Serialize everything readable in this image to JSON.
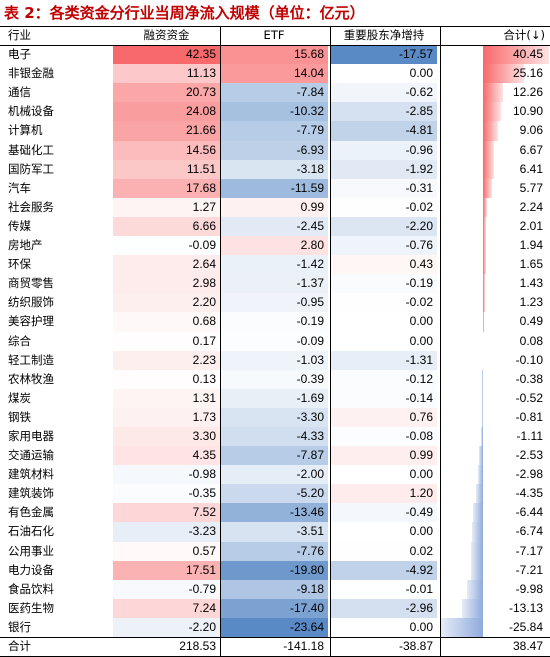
{
  "title": "表 2：各类资金分行业当周净流入规模（单位：亿元）",
  "columns": [
    "行业",
    "融资资金",
    "ETF",
    "重要股东净增持",
    "合计(↓)"
  ],
  "rows": [
    {
      "industry": "电子",
      "margin": "42.35",
      "etf": "15.68",
      "holder": "-17.57",
      "total": "40.45"
    },
    {
      "industry": "非银金融",
      "margin": "11.13",
      "etf": "14.04",
      "holder": "0.00",
      "total": "25.16"
    },
    {
      "industry": "通信",
      "margin": "20.73",
      "etf": "-7.84",
      "holder": "-0.62",
      "total": "12.26"
    },
    {
      "industry": "机械设备",
      "margin": "24.08",
      "etf": "-10.32",
      "holder": "-2.85",
      "total": "10.90"
    },
    {
      "industry": "计算机",
      "margin": "21.66",
      "etf": "-7.79",
      "holder": "-4.81",
      "total": "9.06"
    },
    {
      "industry": "基础化工",
      "margin": "14.56",
      "etf": "-6.93",
      "holder": "-0.96",
      "total": "6.67"
    },
    {
      "industry": "国防军工",
      "margin": "11.51",
      "etf": "-3.18",
      "holder": "-1.92",
      "total": "6.41"
    },
    {
      "industry": "汽车",
      "margin": "17.68",
      "etf": "-11.59",
      "holder": "-0.31",
      "total": "5.77"
    },
    {
      "industry": "社会服务",
      "margin": "1.27",
      "etf": "0.99",
      "holder": "-0.02",
      "total": "2.24"
    },
    {
      "industry": "传媒",
      "margin": "6.66",
      "etf": "-2.45",
      "holder": "-2.20",
      "total": "2.01"
    },
    {
      "industry": "房地产",
      "margin": "-0.09",
      "etf": "2.80",
      "holder": "-0.76",
      "total": "1.94"
    },
    {
      "industry": "环保",
      "margin": "2.64",
      "etf": "-1.42",
      "holder": "0.43",
      "total": "1.65"
    },
    {
      "industry": "商贸零售",
      "margin": "2.98",
      "etf": "-1.37",
      "holder": "-0.19",
      "total": "1.43"
    },
    {
      "industry": "纺织服饰",
      "margin": "2.20",
      "etf": "-0.95",
      "holder": "-0.02",
      "total": "1.23"
    },
    {
      "industry": "美容护理",
      "margin": "0.68",
      "etf": "-0.19",
      "holder": "0.00",
      "total": "0.49"
    },
    {
      "industry": "综合",
      "margin": "0.17",
      "etf": "-0.09",
      "holder": "0.00",
      "total": "0.08"
    },
    {
      "industry": "轻工制造",
      "margin": "2.23",
      "etf": "-1.03",
      "holder": "-1.31",
      "total": "-0.10"
    },
    {
      "industry": "农林牧渔",
      "margin": "0.13",
      "etf": "-0.39",
      "holder": "-0.12",
      "total": "-0.38"
    },
    {
      "industry": "煤炭",
      "margin": "1.31",
      "etf": "-1.69",
      "holder": "-0.14",
      "total": "-0.52"
    },
    {
      "industry": "钢铁",
      "margin": "1.73",
      "etf": "-3.30",
      "holder": "0.76",
      "total": "-0.81"
    },
    {
      "industry": "家用电器",
      "margin": "3.30",
      "etf": "-4.33",
      "holder": "-0.08",
      "total": "-1.11"
    },
    {
      "industry": "交通运输",
      "margin": "4.35",
      "etf": "-7.87",
      "holder": "0.99",
      "total": "-2.53"
    },
    {
      "industry": "建筑材料",
      "margin": "-0.98",
      "etf": "-2.00",
      "holder": "0.00",
      "total": "-2.98"
    },
    {
      "industry": "建筑装饰",
      "margin": "-0.35",
      "etf": "-5.20",
      "holder": "1.20",
      "total": "-4.35"
    },
    {
      "industry": "有色金属",
      "margin": "7.52",
      "etf": "-13.46",
      "holder": "-0.49",
      "total": "-6.44"
    },
    {
      "industry": "石油石化",
      "margin": "-3.23",
      "etf": "-3.51",
      "holder": "0.00",
      "total": "-6.74"
    },
    {
      "industry": "公用事业",
      "margin": "0.57",
      "etf": "-7.76",
      "holder": "0.02",
      "total": "-7.17"
    },
    {
      "industry": "电力设备",
      "margin": "17.51",
      "etf": "-19.80",
      "holder": "-4.92",
      "total": "-7.21"
    },
    {
      "industry": "食品饮料",
      "margin": "-0.79",
      "etf": "-9.18",
      "holder": "-0.01",
      "total": "-9.98"
    },
    {
      "industry": "医药生物",
      "margin": "7.24",
      "etf": "-17.40",
      "holder": "-2.96",
      "total": "-13.13"
    },
    {
      "industry": "银行",
      "margin": "-2.20",
      "etf": "-23.64",
      "holder": "0.00",
      "total": "-25.84"
    }
  ],
  "footer": {
    "industry": "合计",
    "margin": "218.53",
    "etf": "-141.18",
    "holder": "-38.87",
    "total": "38.47"
  },
  "colors": {
    "title": "#c00000",
    "positive": "#f8696b",
    "negative": "#5a8ac6",
    "bar": "#f8696b",
    "bar_negative": "#8faadc"
  }
}
